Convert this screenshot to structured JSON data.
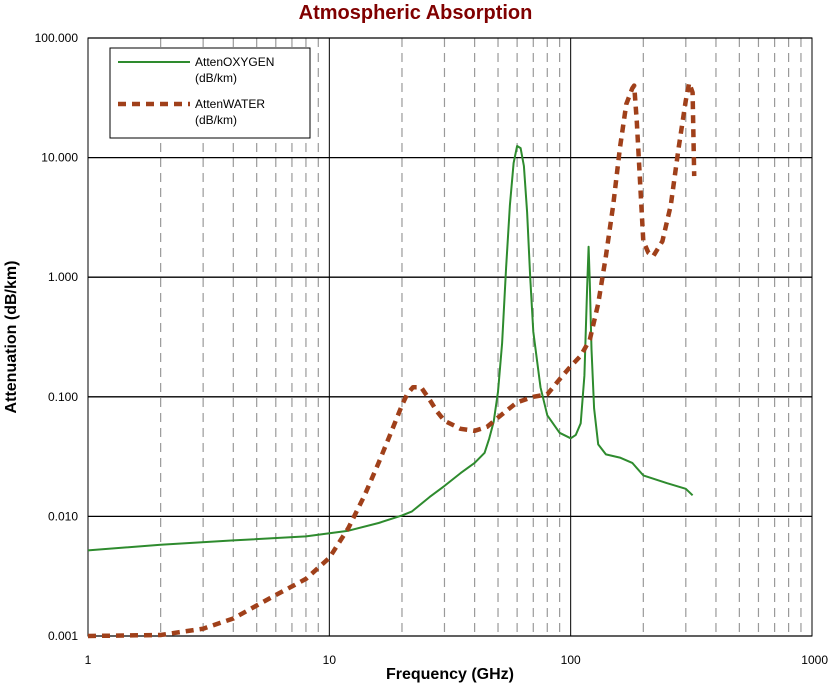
{
  "chart_data": {
    "type": "line",
    "title": "Atmospheric Absorption",
    "xlabel": "Frequency (GHz)",
    "ylabel": "Attenuation (dB/km)",
    "x_scale": "log",
    "y_scale": "log",
    "xlim": [
      1,
      1000
    ],
    "ylim": [
      0.001,
      100
    ],
    "x_ticks": [
      "1",
      "10",
      "100",
      "1000"
    ],
    "y_ticks": [
      "0.001",
      "0.010",
      "0.100",
      "1.000",
      "10.000",
      "100.000"
    ],
    "legend_position": "top-left",
    "series": [
      {
        "name": "AttenOXYGEN (dB/km)",
        "name_lines": [
          "AttenOXYGEN",
          "(dB/km)"
        ],
        "color": "#2e8b2e",
        "style": "solid",
        "points": [
          [
            1,
            0.0052
          ],
          [
            2,
            0.0058
          ],
          [
            4,
            0.0063
          ],
          [
            8,
            0.0068
          ],
          [
            12,
            0.0076
          ],
          [
            16,
            0.0088
          ],
          [
            20,
            0.0102
          ],
          [
            22,
            0.011
          ],
          [
            26,
            0.0145
          ],
          [
            30,
            0.018
          ],
          [
            35,
            0.023
          ],
          [
            40,
            0.028
          ],
          [
            44,
            0.034
          ],
          [
            46,
            0.045
          ],
          [
            48,
            0.062
          ],
          [
            50,
            0.11
          ],
          [
            52,
            0.28
          ],
          [
            54,
            1.2
          ],
          [
            56,
            4.0
          ],
          [
            58,
            9.0
          ],
          [
            60,
            12.5
          ],
          [
            62,
            12.0
          ],
          [
            64,
            8.5
          ],
          [
            66,
            3.5
          ],
          [
            68,
            1.0
          ],
          [
            70,
            0.35
          ],
          [
            75,
            0.12
          ],
          [
            80,
            0.07
          ],
          [
            90,
            0.05
          ],
          [
            100,
            0.045
          ],
          [
            105,
            0.048
          ],
          [
            110,
            0.06
          ],
          [
            114,
            0.15
          ],
          [
            117,
            0.8
          ],
          [
            118.7,
            1.8
          ],
          [
            120,
            0.9
          ],
          [
            122,
            0.25
          ],
          [
            125,
            0.08
          ],
          [
            130,
            0.04
          ],
          [
            140,
            0.033
          ],
          [
            160,
            0.031
          ],
          [
            180,
            0.028
          ],
          [
            200,
            0.022
          ],
          [
            250,
            0.019
          ],
          [
            300,
            0.017
          ],
          [
            320,
            0.015
          ]
        ]
      },
      {
        "name": "AttenWATER (dB/km)",
        "name_lines": [
          "AttenWATER",
          "(dB/km)"
        ],
        "color": "#a0401a",
        "style": "dashed",
        "points": [
          [
            1,
            0.001
          ],
          [
            2,
            0.00102
          ],
          [
            3,
            0.00115
          ],
          [
            4,
            0.0014
          ],
          [
            5,
            0.0018
          ],
          [
            6,
            0.0022
          ],
          [
            7,
            0.0026
          ],
          [
            8,
            0.003
          ],
          [
            10,
            0.0045
          ],
          [
            12,
            0.008
          ],
          [
            14,
            0.015
          ],
          [
            16,
            0.028
          ],
          [
            18,
            0.05
          ],
          [
            20,
            0.085
          ],
          [
            21,
            0.105
          ],
          [
            22.2,
            0.12
          ],
          [
            24,
            0.12
          ],
          [
            26,
            0.095
          ],
          [
            28,
            0.075
          ],
          [
            30,
            0.063
          ],
          [
            35,
            0.054
          ],
          [
            40,
            0.052
          ],
          [
            45,
            0.056
          ],
          [
            50,
            0.067
          ],
          [
            60,
            0.09
          ],
          [
            70,
            0.1
          ],
          [
            80,
            0.105
          ],
          [
            90,
            0.14
          ],
          [
            100,
            0.18
          ],
          [
            110,
            0.22
          ],
          [
            120,
            0.3
          ],
          [
            130,
            0.6
          ],
          [
            140,
            1.5
          ],
          [
            150,
            4.0
          ],
          [
            160,
            12.0
          ],
          [
            170,
            28.0
          ],
          [
            180,
            38.0
          ],
          [
            183.3,
            40.0
          ],
          [
            188,
            20.0
          ],
          [
            195,
            5.0
          ],
          [
            200,
            2.0
          ],
          [
            210,
            1.6
          ],
          [
            220,
            1.5
          ],
          [
            240,
            2.0
          ],
          [
            260,
            4.0
          ],
          [
            280,
            12.0
          ],
          [
            300,
            30.0
          ],
          [
            310,
            42.0
          ],
          [
            320,
            35.0
          ],
          [
            325,
            7.0
          ]
        ]
      }
    ]
  }
}
